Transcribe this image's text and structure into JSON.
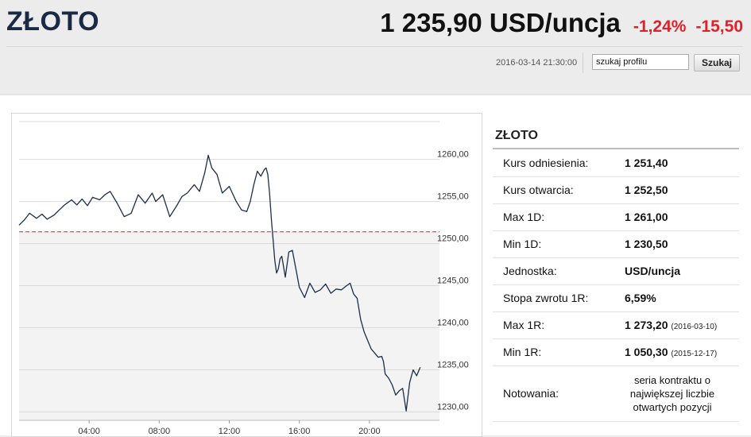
{
  "header": {
    "title": "ZŁOTO",
    "price": "1 235,90 USD/uncja",
    "change_pct": "-1,24%",
    "change_abs": "-15,50",
    "timestamp": "2016-03-14 21:30:00",
    "search_value": "szukaj profilu",
    "search_button": "Szukaj"
  },
  "colors": {
    "negative": "#e0202a",
    "title": "#1a2a44",
    "line": "#1c2e48",
    "reference_line": "#c0303a"
  },
  "panel": {
    "title": "ZŁOTO",
    "rows": [
      {
        "label": "Kurs odniesienia:",
        "value": "1 251,40"
      },
      {
        "label": "Kurs otwarcia:",
        "value": "1 252,50"
      },
      {
        "label": "Max 1D:",
        "value": "1 261,00"
      },
      {
        "label": "Min 1D:",
        "value": "1 230,50"
      },
      {
        "label": "Jednostka:",
        "value": "USD/uncja"
      },
      {
        "label": "Stopa zwrotu 1R:",
        "value": "6,59%"
      },
      {
        "label": "Max 1R:",
        "value": "1 273,20",
        "date": "(2016-03-10)"
      },
      {
        "label": "Min 1R:",
        "value": "1 050,30",
        "date": "(2015-12-17)"
      },
      {
        "label": "Notowania:",
        "value": "seria kontraktu o największej liczbie otwartych pozycji"
      }
    ]
  },
  "chart_data": {
    "type": "line",
    "x_ticks": [
      "04:00",
      "08:00",
      "12:00",
      "16:00",
      "20:00"
    ],
    "y_ticks": [
      "1260,00",
      "1255,00",
      "1250,00",
      "1245,00",
      "1240,00",
      "1235,00",
      "1230,00"
    ],
    "ylim": [
      1229,
      1264.5
    ],
    "reference_value": 1251.4,
    "grid": true,
    "series": [
      {
        "x": [
          0,
          0.3,
          0.6,
          1.0,
          1.3,
          1.6,
          2.0,
          2.3,
          2.6,
          3.0,
          3.3,
          3.6,
          3.9,
          4.2,
          4.6,
          4.9,
          5.2,
          5.6,
          6.0,
          6.4,
          6.8,
          7.2,
          7.6,
          7.8,
          8.2,
          8.6,
          9.0,
          9.3,
          9.6,
          10.0,
          10.3,
          10.6,
          10.8,
          11.0,
          11.3,
          11.6,
          12.0,
          12.4,
          12.7,
          13.0,
          13.2,
          13.4,
          13.6,
          13.8,
          14.0,
          14.1,
          14.2,
          14.3,
          14.4,
          14.5,
          14.6,
          14.7,
          14.8,
          14.9,
          15.0,
          15.2,
          15.4,
          15.6,
          15.8,
          16.0,
          16.3,
          16.6,
          16.9,
          17.2,
          17.5,
          17.8,
          18.1,
          18.4,
          18.7,
          18.9,
          19.1,
          19.3,
          19.5,
          19.7,
          19.9,
          20.1,
          20.3,
          20.5,
          20.7,
          20.8,
          20.9,
          21.1,
          21.3,
          21.5,
          21.7,
          21.9,
          22.1,
          22.3,
          22.5,
          22.7,
          22.9
        ],
        "y": [
          1252.2,
          1252.8,
          1253.6,
          1253.0,
          1253.5,
          1252.9,
          1253.4,
          1254.0,
          1254.6,
          1255.2,
          1254.6,
          1255.3,
          1254.5,
          1255.5,
          1255.2,
          1255.8,
          1256.2,
          1254.8,
          1253.2,
          1253.6,
          1255.8,
          1254.8,
          1256.0,
          1255.0,
          1255.8,
          1253.2,
          1254.5,
          1255.6,
          1256.0,
          1257.0,
          1256.2,
          1258.4,
          1260.5,
          1259.0,
          1258.2,
          1256.0,
          1256.8,
          1255.0,
          1254.0,
          1253.8,
          1255.0,
          1257.0,
          1258.6,
          1258.0,
          1258.8,
          1259.0,
          1258.2,
          1256.0,
          1253.0,
          1250.5,
          1248.0,
          1246.5,
          1247.0,
          1248.2,
          1248.5,
          1246.0,
          1249.0,
          1249.2,
          1247.0,
          1244.8,
          1243.6,
          1245.3,
          1244.2,
          1244.5,
          1245.2,
          1244.1,
          1244.6,
          1244.5,
          1245.0,
          1245.3,
          1244.0,
          1243.5,
          1241.0,
          1239.5,
          1238.5,
          1237.5,
          1237.0,
          1236.5,
          1236.6,
          1236.0,
          1234.5,
          1234.0,
          1233.2,
          1232.0,
          1232.5,
          1232.8,
          1230.1,
          1233.5,
          1235.0,
          1234.3,
          1235.3
        ]
      }
    ]
  }
}
